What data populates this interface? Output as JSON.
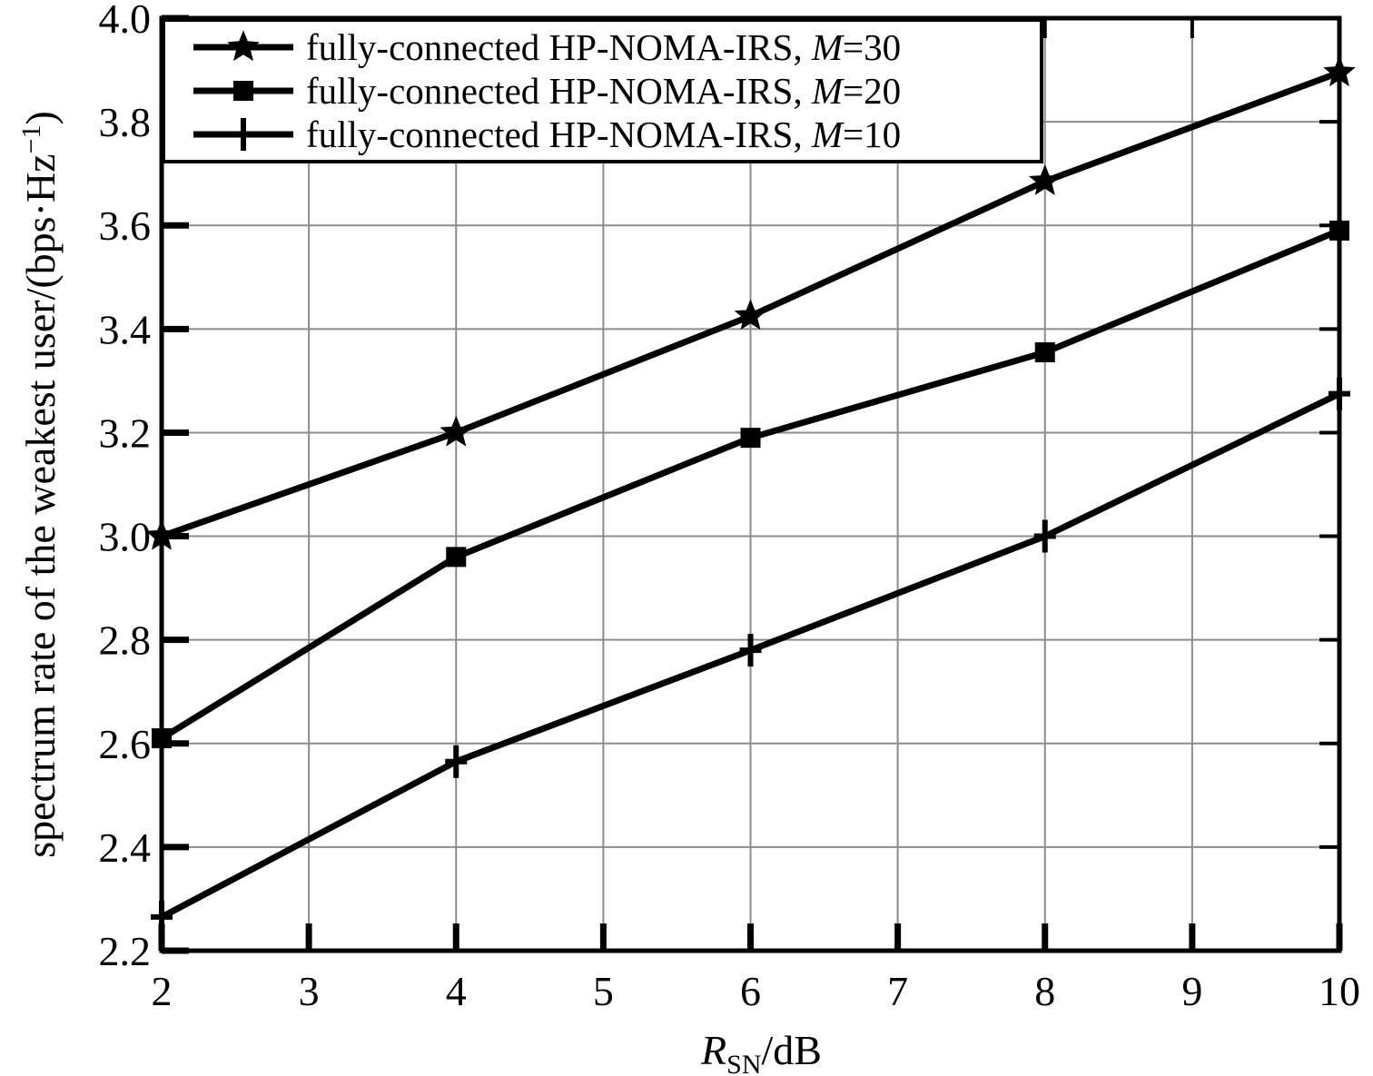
{
  "chart_data": {
    "type": "line",
    "xlabel": {
      "italic": "R",
      "sub": "SN",
      "unit": "/dB"
    },
    "ylabel": {
      "main": "spectrum rate of the weakest user/(bps·Hz",
      "sup": "−1",
      "close": ")"
    },
    "xlim": [
      2,
      10
    ],
    "ylim": [
      2.2,
      4.0
    ],
    "xticks": [
      "2",
      "3",
      "4",
      "5",
      "6",
      "7",
      "8",
      "9",
      "10"
    ],
    "yticks": [
      "2.2",
      "2.4",
      "2.6",
      "2.8",
      "3.0",
      "3.2",
      "3.4",
      "3.6",
      "3.8",
      "4.0"
    ],
    "grid": true,
    "legend_position": "top-left",
    "x": [
      2,
      4,
      6,
      8,
      10
    ],
    "series": [
      {
        "legend_prefix": "fully-connected HP-NOMA-IRS, ",
        "legend_var": "M",
        "legend_suffix": "=30",
        "marker": "star",
        "values": [
          3.0,
          3.2,
          3.425,
          3.685,
          3.895
        ]
      },
      {
        "legend_prefix": "fully-connected HP-NOMA-IRS, ",
        "legend_var": "M",
        "legend_suffix": "=20",
        "marker": "square",
        "values": [
          2.61,
          2.96,
          3.19,
          3.355,
          3.59
        ]
      },
      {
        "legend_prefix": "fully-connected HP-NOMA-IRS, ",
        "legend_var": "M",
        "legend_suffix": "=10",
        "marker": "plus",
        "values": [
          2.265,
          2.565,
          2.78,
          3.0,
          3.275
        ]
      }
    ],
    "colors": {
      "line": "#000000",
      "grid": "#8c8c8c",
      "background": "#ffffff"
    }
  }
}
